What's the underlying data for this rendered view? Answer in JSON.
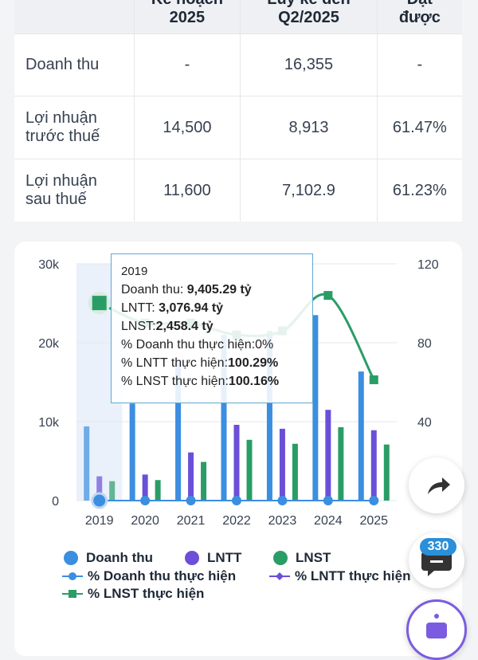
{
  "table": {
    "headers": [
      {
        "line1": "",
        "line2": ""
      },
      {
        "line1": "Kế hoạch",
        "line2": "2025"
      },
      {
        "line1": "Lũy kế đến",
        "line2": "Q2/2025"
      },
      {
        "line1": "Đạt",
        "line2": "được"
      }
    ],
    "rows": [
      {
        "label1": "Doanh thu",
        "label2": "",
        "plan": "-",
        "cumulative": "16,355",
        "achieved": "-"
      },
      {
        "label1": "Lợi nhuận",
        "label2": "trước thuế",
        "plan": "14,500",
        "cumulative": "8,913",
        "achieved": "61.47%"
      },
      {
        "label1": "Lợi nhuận",
        "label2": "sau thuế",
        "plan": "11,600",
        "cumulative": "7,102.9",
        "achieved": "61.23%"
      }
    ]
  },
  "chart_data": {
    "type": "bar",
    "categories": [
      "2019",
      "2020",
      "2021",
      "2022",
      "2023",
      "2024",
      "2025"
    ],
    "y_left_ticks": [
      "0",
      "10k",
      "20k",
      "30k"
    ],
    "y_right_ticks": [
      "40",
      "80",
      "120"
    ],
    "ylim_left": [
      0,
      30000
    ],
    "ylim_right": [
      0,
      120
    ],
    "series": [
      {
        "name": "Doanh thu",
        "type": "bar",
        "color": "#3b8ee0",
        "values": [
          9405.29,
          12300,
          17500,
          21000,
          21500,
          23500,
          16355
        ]
      },
      {
        "name": "LNTT",
        "type": "bar",
        "color": "#6b4fd8",
        "values": [
          3076.94,
          3300,
          6100,
          9600,
          9100,
          11500,
          8913
        ]
      },
      {
        "name": "LNST",
        "type": "bar",
        "color": "#2a9d66",
        "values": [
          2458.4,
          2600,
          4900,
          7700,
          7200,
          9300,
          7102.9
        ]
      },
      {
        "name": "% Doanh thu thực hiện",
        "type": "line",
        "color": "#3b8ee0",
        "values": [
          0,
          0,
          0,
          0,
          0,
          0,
          0
        ]
      },
      {
        "name": "% LNTT thực hiện",
        "type": "line",
        "color": "#6b4fd8",
        "values": [
          100.29,
          89,
          89,
          84,
          85,
          104,
          61.47
        ]
      },
      {
        "name": "% LNST thực hiện",
        "type": "line",
        "color": "#2a9d66",
        "values": [
          100.16,
          90,
          90,
          84,
          86,
          104,
          61.23
        ]
      }
    ],
    "highlighted_category": "2019",
    "tooltip": {
      "year": "2019",
      "rev_label": "Doanh thu: ",
      "rev_value": "9,405.29 tỷ",
      "lntt_label": "LNTT: ",
      "lntt_value": "3,076.94 tỷ",
      "lnst_label": "LNST:",
      "lnst_value": "2,458.4 tỷ",
      "pct_rev": "% Doanh thu thực hiện:0%",
      "pct_lntt_label": "% LNTT thực hiện:",
      "pct_lntt_value": "100.29%",
      "pct_lnst_label": "% LNST thực hiện:",
      "pct_lnst_value": "100.16%"
    },
    "legend_placement": "bottom"
  },
  "floating": {
    "badge_count": "330",
    "icons": [
      "share-icon",
      "chat-icon",
      "bot-icon"
    ]
  }
}
